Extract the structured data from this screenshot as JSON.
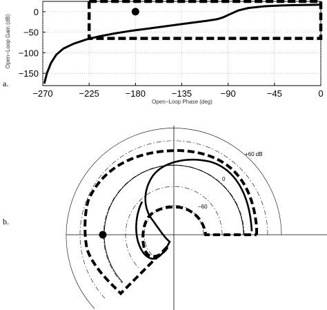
{
  "chart_data": [
    {
      "type": "line",
      "panel_label": "a.",
      "xlabel": "Open−Loop Phase (deg)",
      "ylabel": "Open−Loop Gain (dB)",
      "xlim": [
        -270,
        0
      ],
      "ylim": [
        -180,
        25
      ],
      "x_ticks": [
        -270,
        -225,
        -180,
        -135,
        -90,
        -45,
        0
      ],
      "x_tick_labels": [
        "−270",
        "−225",
        "−180",
        "−135",
        "−90",
        "−45",
        "0"
      ],
      "y_ticks": [
        0,
        -50,
        -100,
        -150
      ],
      "y_tick_labels": [
        "0",
        "−50",
        "−100",
        "−150"
      ],
      "grid": true,
      "series": [
        {
          "style": "solid-thick",
          "x": [
            -268.5,
            -266,
            -262,
            -257,
            -250,
            -240,
            -228,
            -215,
            -200,
            -185,
            -170,
            -155,
            -140,
            -125,
            -110,
            -100,
            -95,
            -88,
            -80,
            -70,
            -55,
            -40,
            -25,
            -10,
            0
          ],
          "y": [
            -175,
            -150,
            -125,
            -105,
            -90,
            -78,
            -68,
            -60,
            -53,
            -47,
            -42,
            -37,
            -32,
            -27,
            -22,
            -18,
            -14,
            -6,
            3,
            9,
            13,
            15,
            16,
            16.5,
            17
          ]
        },
        {
          "style": "dashed-box",
          "x": [
            -225,
            0,
            0,
            -225,
            -225
          ],
          "y": [
            25,
            25,
            -65,
            -65,
            25
          ]
        }
      ],
      "markers": [
        {
          "shape": "filled-circle",
          "x": -180,
          "y": 0
        }
      ]
    },
    {
      "type": "line",
      "panel_label": "b.",
      "ring_labels": [
        "+60 dB",
        "0",
        "−60"
      ],
      "series": [
        {
          "style": "solid-thick",
          "name": ""
        },
        {
          "style": "dashed-thick-boundary",
          "name": ""
        }
      ],
      "markers": [
        {
          "shape": "filled-circle",
          "phase_deg": -180,
          "gain_db": 0
        }
      ]
    }
  ]
}
